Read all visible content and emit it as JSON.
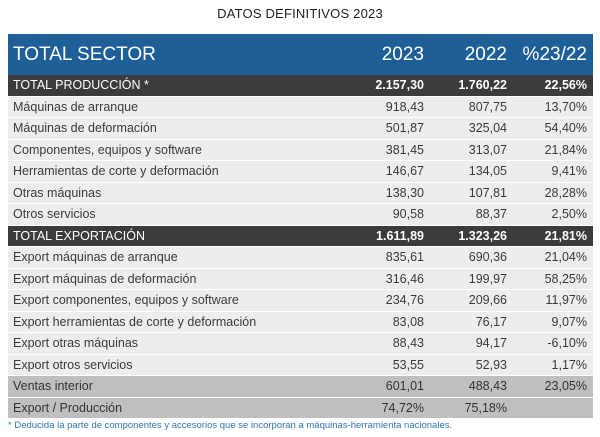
{
  "page_title": "DATOS DEFINITIVOS 2023",
  "header": {
    "label": "TOTAL SECTOR",
    "col_2023": "2023",
    "col_2022": "2022",
    "col_pct": "%23/22"
  },
  "rows": [
    {
      "label": "TOTAL PRODUCCIÓN *",
      "v2023": "2.157,30",
      "v2022": "1.760,22",
      "pct": "22,56%",
      "style": "total"
    },
    {
      "label": "Máquinas de arranque",
      "v2023": "918,43",
      "v2022": "807,75",
      "pct": "13,70%",
      "style": "light"
    },
    {
      "label": "Máquinas de deformación",
      "v2023": "501,87",
      "v2022": "325,04",
      "pct": "54,40%",
      "style": "light"
    },
    {
      "label": "Componentes, equipos y software",
      "v2023": "381,45",
      "v2022": "313,07",
      "pct": "21,84%",
      "style": "light"
    },
    {
      "label": "Herramientas de corte y deformación",
      "v2023": "146,67",
      "v2022": "134,05",
      "pct": "9,41%",
      "style": "light"
    },
    {
      "label": "Otras máquinas",
      "v2023": "138,30",
      "v2022": "107,81",
      "pct": "28,28%",
      "style": "light"
    },
    {
      "label": "Otros servicios",
      "v2023": "90,58",
      "v2022": "88,37",
      "pct": "2,50%",
      "style": "light"
    },
    {
      "label": "TOTAL EXPORTACIÓN",
      "v2023": "1.611,89",
      "v2022": "1.323,26",
      "pct": "21,81%",
      "style": "total"
    },
    {
      "label": "Export máquinas de arranque",
      "v2023": "835,61",
      "v2022": "690,36",
      "pct": "21,04%",
      "style": "light"
    },
    {
      "label": "Export máquinas de deformación",
      "v2023": "316,46",
      "v2022": "199,97",
      "pct": "58,25%",
      "style": "light"
    },
    {
      "label": "Export componentes, equipos y software",
      "v2023": "234,76",
      "v2022": "209,66",
      "pct": "11,97%",
      "style": "light"
    },
    {
      "label": "Export herramientas de corte y deformación",
      "v2023": "83,08",
      "v2022": "76,17",
      "pct": "9,07%",
      "style": "light"
    },
    {
      "label": "Export otras máquinas",
      "v2023": "88,43",
      "v2022": "94,17",
      "pct": "-6,10%",
      "style": "light"
    },
    {
      "label": "Export otros servicios",
      "v2023": "53,55",
      "v2022": "52,93",
      "pct": "1,17%",
      "style": "light"
    },
    {
      "label": "Ventas interior",
      "v2023": "601,01",
      "v2022": "488,43",
      "pct": "23,05%",
      "style": "gray"
    },
    {
      "label": "Export / Producción",
      "v2023": "74,72%",
      "v2022": "75,18%",
      "pct": "",
      "style": "gray"
    }
  ],
  "footnote": "* Deducida la parte de componentes y accesorios que se incorporan a máquinas-herramienta nacionales.",
  "colors": {
    "header_bg": "#1f5f97",
    "total_bg": "#3b3b3b",
    "row_bg": "#ededed",
    "summary_bg": "#bfbfbf",
    "note_text": "#2e75b6"
  }
}
